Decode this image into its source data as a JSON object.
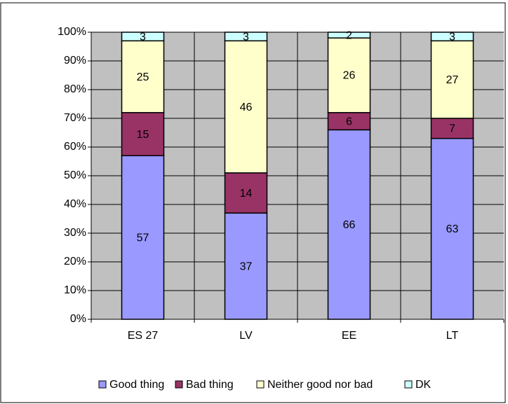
{
  "chart_data": {
    "type": "stacked_bar",
    "categories": [
      "ES 27",
      "LV",
      "EE",
      "LT"
    ],
    "series": [
      {
        "name": "Good thing",
        "color": "#9999ff",
        "values": [
          57,
          37,
          66,
          63
        ]
      },
      {
        "name": "Bad thing",
        "color": "#993366",
        "values": [
          15,
          14,
          6,
          7
        ]
      },
      {
        "name": "Neither good nor bad",
        "color": "#ffffcc",
        "values": [
          25,
          46,
          26,
          27
        ]
      },
      {
        "name": "DK",
        "color": "#ccffff",
        "values": [
          3,
          3,
          2,
          3
        ]
      }
    ],
    "ylim": [
      0,
      100
    ],
    "yticks": [
      {
        "value": 0,
        "label": "0%"
      },
      {
        "value": 10,
        "label": "10%"
      },
      {
        "value": 20,
        "label": "20%"
      },
      {
        "value": 30,
        "label": "30%"
      },
      {
        "value": 40,
        "label": "40%"
      },
      {
        "value": 50,
        "label": "50%"
      },
      {
        "value": 60,
        "label": "60%"
      },
      {
        "value": 70,
        "label": "70%"
      },
      {
        "value": 80,
        "label": "80%"
      },
      {
        "value": 90,
        "label": "90%"
      },
      {
        "value": 100,
        "label": "100%"
      }
    ],
    "grid": true,
    "plot_background": "#c0c0c0",
    "legend": "bottom"
  }
}
